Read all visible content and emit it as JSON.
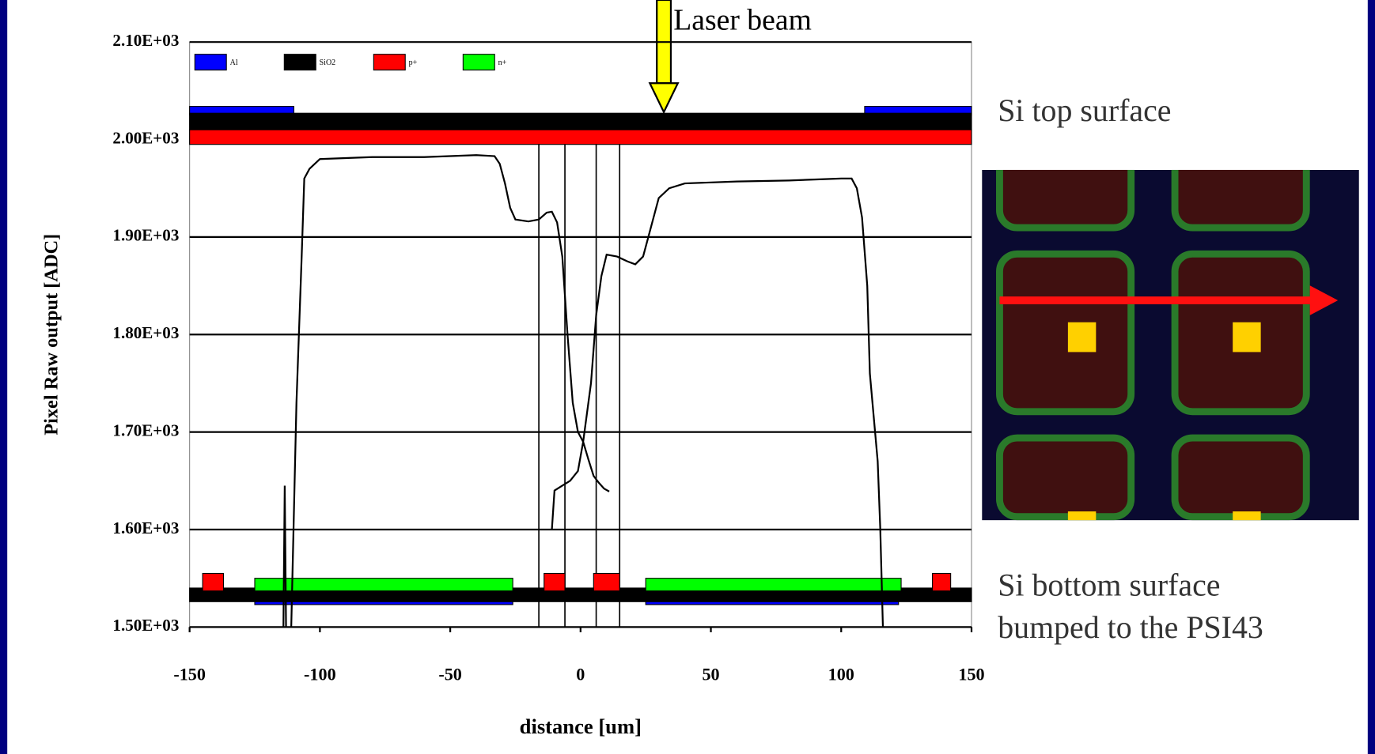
{
  "chart_data": {
    "type": "line",
    "ylabel": "Pixel Raw output [ADC]",
    "xlabel": "distance [um]",
    "xlim": [
      -150,
      150
    ],
    "xticks": [
      -150,
      -100,
      -50,
      0,
      50,
      100,
      150
    ],
    "ylim": [
      1500,
      2100
    ],
    "yticks": [
      {
        "value": 1500,
        "label": "1.50E+03"
      },
      {
        "value": 1600,
        "label": "1.60E+03"
      },
      {
        "value": 1700,
        "label": "1.70E+03"
      },
      {
        "value": 1800,
        "label": "1.80E+03"
      },
      {
        "value": 1900,
        "label": "1.90E+03"
      },
      {
        "value": 2000,
        "label": "2.00E+03"
      },
      {
        "value": 2100,
        "label": "2.10E+03"
      }
    ],
    "grid": true,
    "series": [
      {
        "color": "#000000",
        "x": [
          -114,
          -113.5,
          -113,
          null,
          -111,
          -109,
          -107,
          -106,
          -104,
          -100,
          -80,
          -60,
          -40,
          -33,
          -31,
          -29,
          -27,
          -25,
          -20,
          -16,
          -13,
          -11,
          -9,
          -7,
          -5,
          -3,
          -1,
          1,
          3,
          5,
          7,
          9,
          11,
          null,
          -11,
          -10,
          -7,
          -4,
          -1,
          1,
          4,
          6,
          8,
          10,
          14,
          18,
          21,
          24,
          26,
          28,
          30,
          34,
          40,
          60,
          80,
          100,
          104,
          106,
          108,
          110,
          111,
          113,
          114,
          115,
          116
        ],
        "values": [
          1500,
          1645,
          1500,
          null,
          1500,
          1730,
          1880,
          1960,
          1970,
          1980,
          1982,
          1982,
          1984,
          1983,
          1975,
          1955,
          1930,
          1918,
          1916,
          1918,
          1925,
          1926,
          1915,
          1880,
          1800,
          1730,
          1700,
          1690,
          1672,
          1655,
          1648,
          1642,
          1639,
          null,
          1600,
          1640,
          1645,
          1650,
          1660,
          1690,
          1750,
          1820,
          1860,
          1882,
          1880,
          1875,
          1872,
          1880,
          1900,
          1920,
          1940,
          1950,
          1955,
          1957,
          1958,
          1960,
          1960,
          1950,
          1920,
          1850,
          1760,
          1700,
          1670,
          1600,
          1500
        ]
      }
    ],
    "vlines": [
      -16,
      -6,
      6,
      15
    ],
    "layers": [
      {
        "name": "Al",
        "color": "#0000ff",
        "segments": [
          [
            -150,
            -110,
            2025,
            2034
          ],
          [
            109,
            150,
            2025,
            2034
          ],
          [
            -125,
            -26,
            1523,
            1530
          ],
          [
            25,
            122,
            1523,
            1530
          ]
        ]
      },
      {
        "name": "SiO2",
        "color": "#000000",
        "segments": [
          [
            -150,
            150,
            2010,
            2027
          ],
          [
            -150,
            150,
            1526,
            1540
          ]
        ]
      },
      {
        "name": "p+",
        "color": "#ff0000",
        "segments": [
          [
            -150,
            150,
            1995,
            2010
          ],
          [
            -145,
            -137,
            1537,
            1555
          ],
          [
            -14,
            -6,
            1537,
            1555
          ],
          [
            5,
            15,
            1537,
            1555
          ],
          [
            135,
            142,
            1537,
            1555
          ]
        ]
      },
      {
        "name": "n+",
        "color": "#00ff00",
        "segments": [
          [
            -125,
            -26,
            1537,
            1550
          ],
          [
            25,
            123,
            1537,
            1550
          ]
        ]
      }
    ],
    "annotations": [
      "Laser beam",
      "Si top surface",
      "Si bottom surface",
      "bumped to the PSI43"
    ]
  }
}
